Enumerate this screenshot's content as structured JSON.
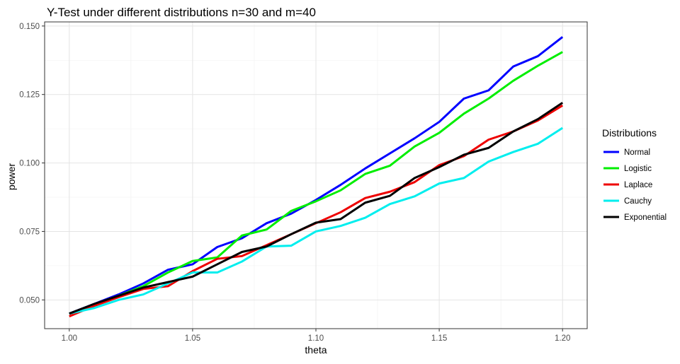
{
  "chart_data": {
    "type": "line",
    "title": "Y-Test under different distributions n=30 and m=40",
    "xlabel": "theta",
    "ylabel": "power",
    "xlim": [
      0.99,
      1.21
    ],
    "ylim": [
      0.0395,
      0.1515
    ],
    "x_ticks": [
      1.0,
      1.05,
      1.1,
      1.15,
      1.2
    ],
    "x_tick_labels": [
      "1.00",
      "1.05",
      "1.10",
      "1.15",
      "1.20"
    ],
    "y_ticks": [
      0.05,
      0.075,
      0.1,
      0.125,
      0.15
    ],
    "y_tick_labels": [
      "0.050",
      "0.075",
      "0.100",
      "0.125",
      "0.150"
    ],
    "grid": true,
    "legend": {
      "title": "Distributions",
      "position": "right"
    },
    "x": [
      1.0,
      1.01,
      1.02,
      1.03,
      1.04,
      1.05,
      1.06,
      1.07,
      1.08,
      1.09,
      1.1,
      1.11,
      1.12,
      1.13,
      1.14,
      1.15,
      1.16,
      1.17,
      1.18,
      1.19,
      1.2
    ],
    "series": [
      {
        "name": "Normal",
        "color": "#0000ff",
        "values": [
          0.045,
          0.0485,
          0.052,
          0.056,
          0.061,
          0.063,
          0.0693,
          0.0725,
          0.078,
          0.0815,
          0.0865,
          0.092,
          0.098,
          0.1035,
          0.109,
          0.115,
          0.1235,
          0.1265,
          0.1352,
          0.139,
          0.146
        ]
      },
      {
        "name": "Logistic",
        "color": "#00ee00",
        "values": [
          0.045,
          0.0482,
          0.0515,
          0.055,
          0.06,
          0.0642,
          0.0655,
          0.0735,
          0.0757,
          0.0825,
          0.086,
          0.09,
          0.096,
          0.099,
          0.106,
          0.111,
          0.118,
          0.1235,
          0.13,
          0.1355,
          0.1405
        ]
      },
      {
        "name": "Laplace",
        "color": "#ee0000",
        "values": [
          0.044,
          0.0478,
          0.051,
          0.054,
          0.055,
          0.0605,
          0.065,
          0.066,
          0.07,
          0.074,
          0.078,
          0.082,
          0.0872,
          0.0895,
          0.093,
          0.0992,
          0.1025,
          0.1085,
          0.1115,
          0.1155,
          0.121
        ]
      },
      {
        "name": "Cauchy",
        "color": "#00eeee",
        "values": [
          0.045,
          0.047,
          0.05,
          0.052,
          0.056,
          0.06,
          0.06,
          0.064,
          0.0695,
          0.0698,
          0.075,
          0.077,
          0.08,
          0.085,
          0.0878,
          0.0925,
          0.0945,
          0.1005,
          0.104,
          0.107,
          0.1128
        ]
      },
      {
        "name": "Exponential",
        "color": "#000000",
        "values": [
          0.045,
          0.0485,
          0.0515,
          0.0545,
          0.0565,
          0.0585,
          0.063,
          0.0675,
          0.0695,
          0.074,
          0.0782,
          0.0795,
          0.0855,
          0.088,
          0.0945,
          0.0985,
          0.103,
          0.1055,
          0.1115,
          0.116,
          0.122
        ]
      }
    ]
  }
}
